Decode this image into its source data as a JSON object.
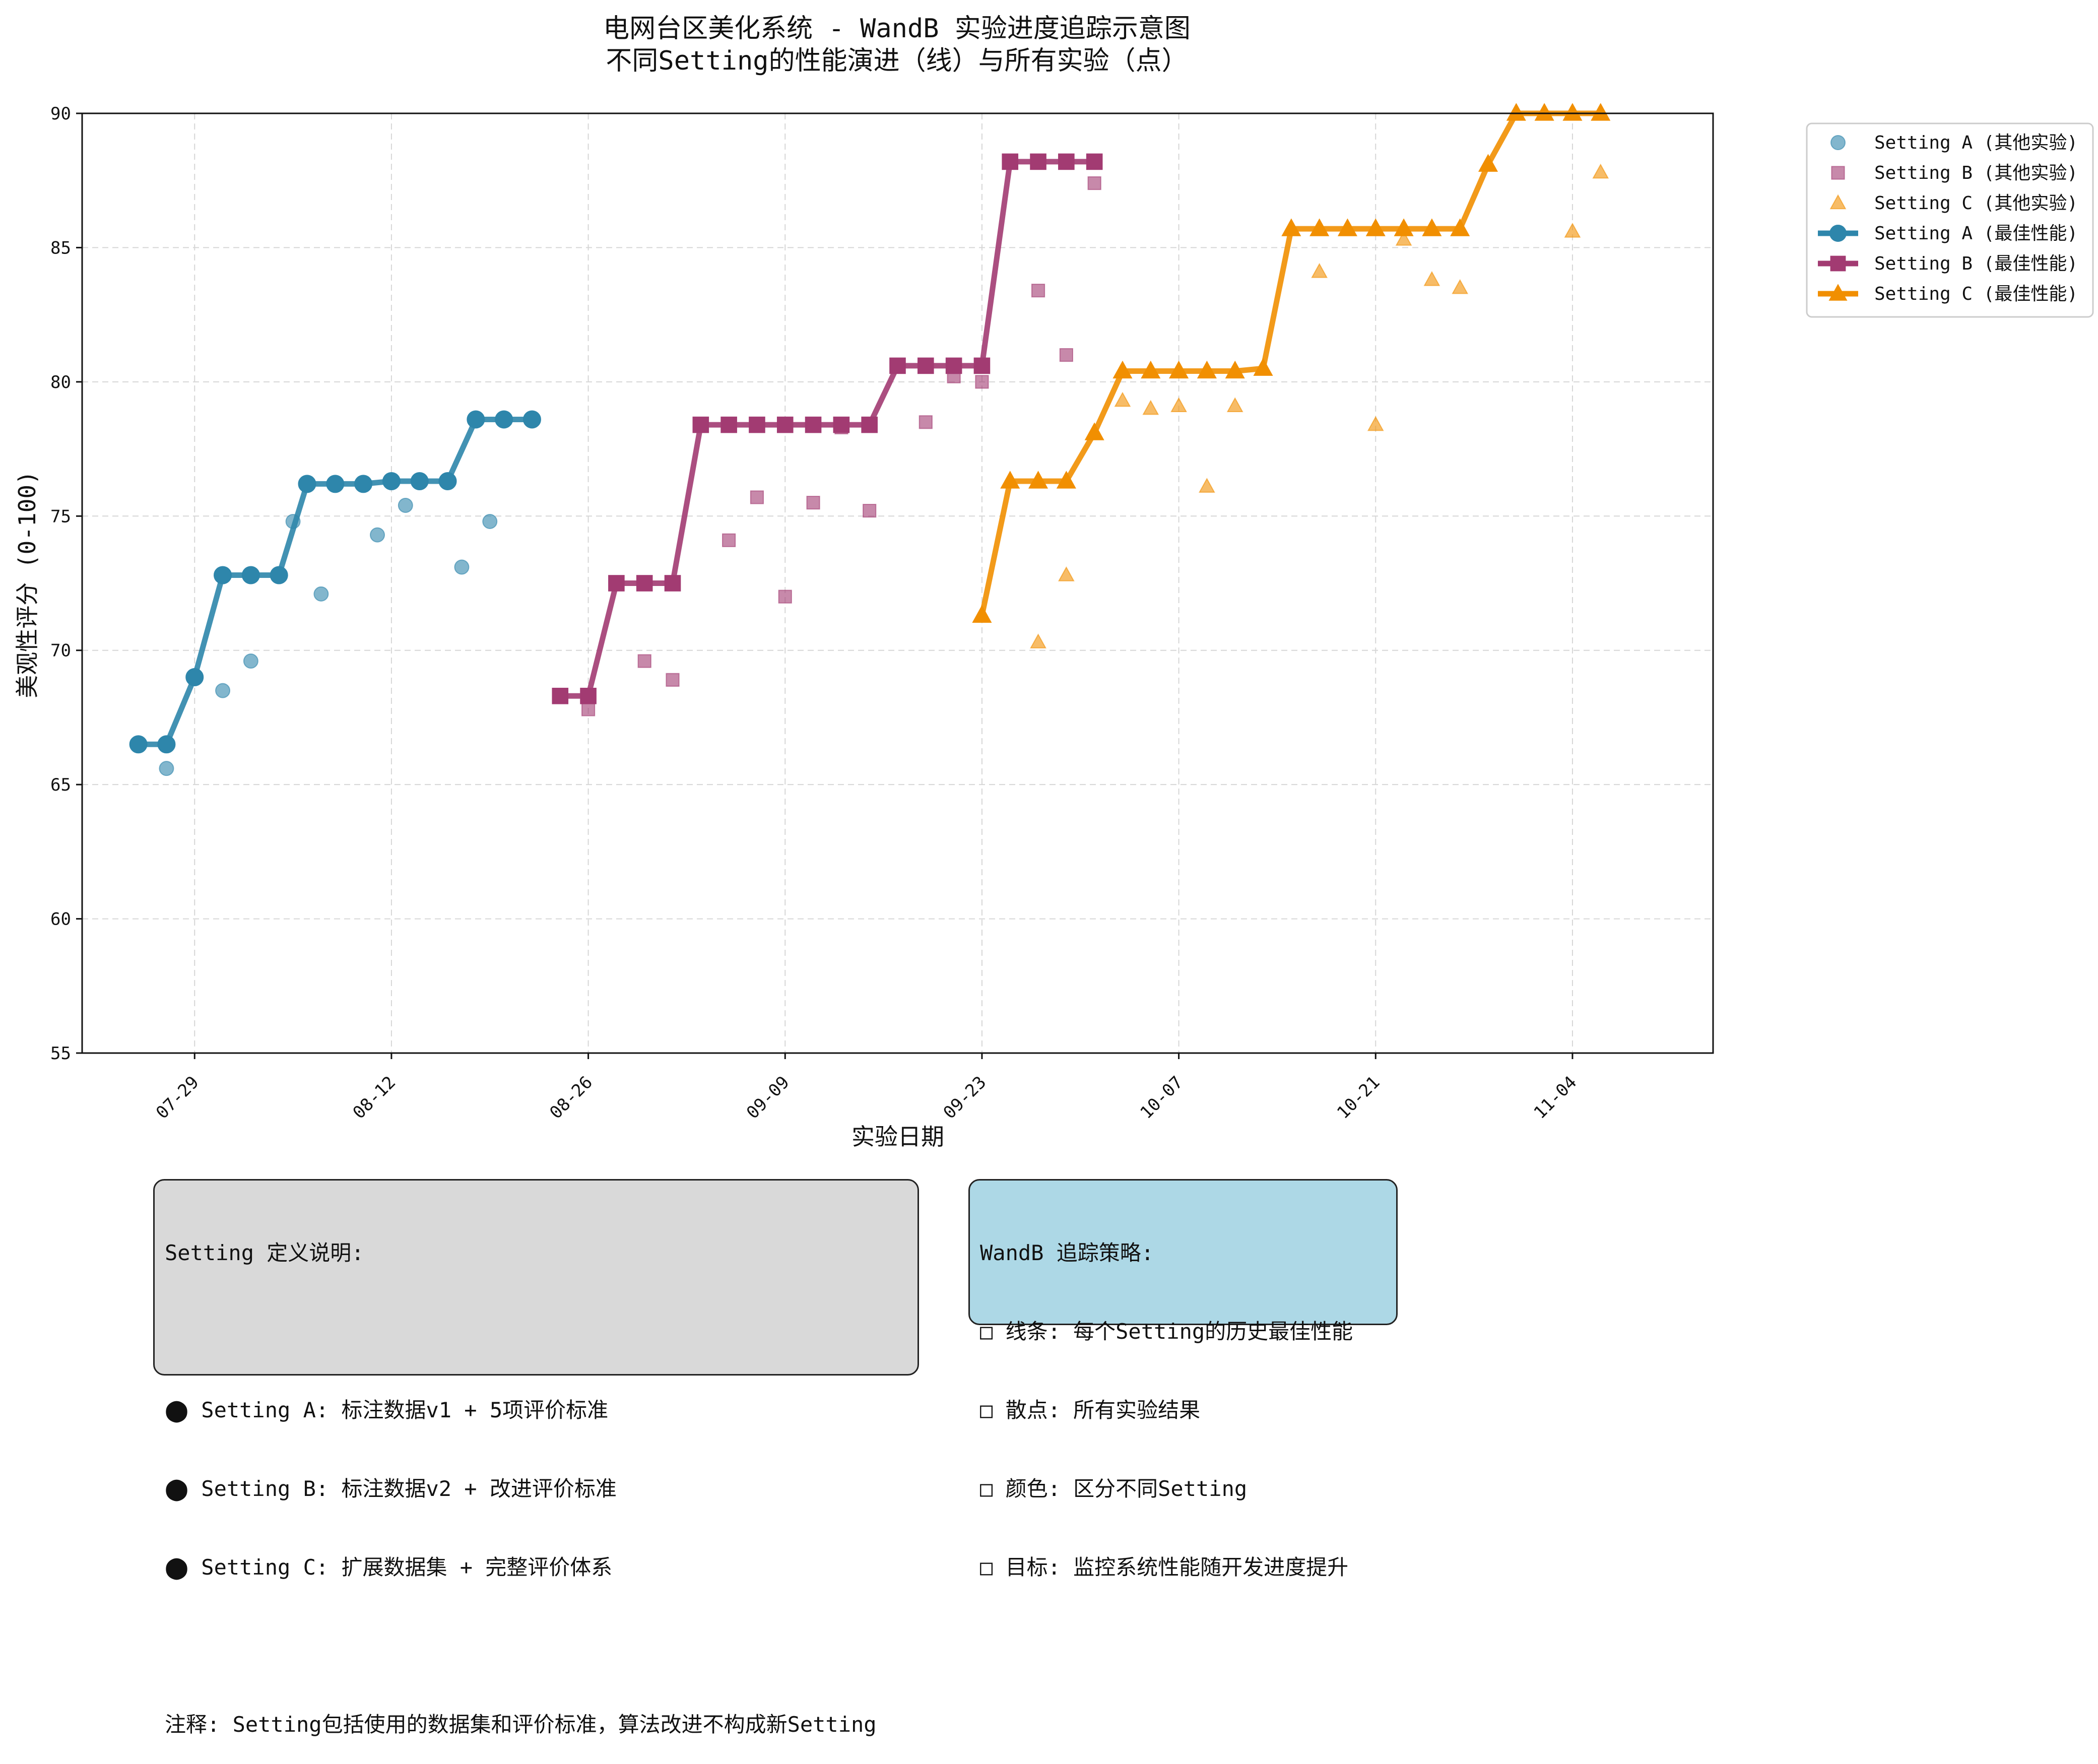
{
  "title": "电网台区美化系统 - WandB 实验进度追踪示意图",
  "subtitle": "不同Setting的性能演进（线）与所有实验（点）",
  "chart_data": {
    "type": "line",
    "xlabel": "实验日期",
    "ylabel": "美观性评分 (0-100)",
    "ylim": [
      55,
      90
    ],
    "xlim": [
      "2025-07-21",
      "2025-11-14"
    ],
    "x_ticks": [
      "07-29",
      "08-12",
      "08-26",
      "09-09",
      "09-23",
      "10-07",
      "10-21",
      "11-04"
    ],
    "y_ticks": [
      55,
      60,
      65,
      70,
      75,
      80,
      85,
      90
    ],
    "grid": true,
    "legend_position": "outside top-right",
    "series": [
      {
        "name": "Setting A (其他实验)",
        "kind": "scatter",
        "marker": "circle",
        "color": "#2e86ab",
        "points": [
          [
            "2025-07-27",
            65.6
          ],
          [
            "2025-07-31",
            68.5
          ],
          [
            "2025-08-02",
            69.6
          ],
          [
            "2025-08-05",
            74.8
          ],
          [
            "2025-08-07",
            72.1
          ],
          [
            "2025-08-11",
            74.3
          ],
          [
            "2025-08-13",
            75.4
          ],
          [
            "2025-08-17",
            73.1
          ],
          [
            "2025-08-19",
            74.8
          ]
        ]
      },
      {
        "name": "Setting B (其他实验)",
        "kind": "scatter",
        "marker": "square",
        "color": "#a23b72",
        "points": [
          [
            "2025-08-26",
            67.8
          ],
          [
            "2025-08-30",
            69.6
          ],
          [
            "2025-09-01",
            68.9
          ],
          [
            "2025-09-05",
            74.1
          ],
          [
            "2025-09-07",
            75.7
          ],
          [
            "2025-09-09",
            72.0
          ],
          [
            "2025-09-11",
            75.5
          ],
          [
            "2025-09-13",
            78.3
          ],
          [
            "2025-09-15",
            75.2
          ],
          [
            "2025-09-19",
            78.5
          ],
          [
            "2025-09-21",
            80.2
          ],
          [
            "2025-09-23",
            80.0
          ],
          [
            "2025-09-27",
            83.4
          ],
          [
            "2025-09-29",
            81.0
          ],
          [
            "2025-10-01",
            87.4
          ]
        ]
      },
      {
        "name": "Setting C (其他实验)",
        "kind": "scatter",
        "marker": "triangle",
        "color": "#f18f01",
        "points": [
          [
            "2025-09-27",
            70.3
          ],
          [
            "2025-09-29",
            72.8
          ],
          [
            "2025-10-03",
            79.3
          ],
          [
            "2025-10-05",
            79.0
          ],
          [
            "2025-10-07",
            79.1
          ],
          [
            "2025-10-09",
            76.1
          ],
          [
            "2025-10-11",
            79.1
          ],
          [
            "2025-10-17",
            84.1
          ],
          [
            "2025-10-21",
            78.4
          ],
          [
            "2025-10-23",
            85.3
          ],
          [
            "2025-10-25",
            83.8
          ],
          [
            "2025-10-27",
            83.5
          ],
          [
            "2025-11-04",
            85.6
          ],
          [
            "2025-11-06",
            87.8
          ]
        ]
      },
      {
        "name": "Setting A (最佳性能)",
        "kind": "line",
        "marker": "circle",
        "color": "#2e86ab",
        "points": [
          [
            "2025-07-25",
            66.5
          ],
          [
            "2025-07-27",
            66.5
          ],
          [
            "2025-07-29",
            69.0
          ],
          [
            "2025-07-31",
            72.8
          ],
          [
            "2025-08-02",
            72.8
          ],
          [
            "2025-08-04",
            72.8
          ],
          [
            "2025-08-06",
            76.2
          ],
          [
            "2025-08-08",
            76.2
          ],
          [
            "2025-08-10",
            76.2
          ],
          [
            "2025-08-12",
            76.3
          ],
          [
            "2025-08-14",
            76.3
          ],
          [
            "2025-08-16",
            76.3
          ],
          [
            "2025-08-18",
            78.6
          ],
          [
            "2025-08-20",
            78.6
          ],
          [
            "2025-08-22",
            78.6
          ]
        ]
      },
      {
        "name": "Setting B (最佳性能)",
        "kind": "line",
        "marker": "square",
        "color": "#a23b72",
        "points": [
          [
            "2025-08-24",
            68.3
          ],
          [
            "2025-08-26",
            68.3
          ],
          [
            "2025-08-28",
            72.5
          ],
          [
            "2025-08-30",
            72.5
          ],
          [
            "2025-09-01",
            72.5
          ],
          [
            "2025-09-03",
            78.4
          ],
          [
            "2025-09-05",
            78.4
          ],
          [
            "2025-09-07",
            78.4
          ],
          [
            "2025-09-09",
            78.4
          ],
          [
            "2025-09-11",
            78.4
          ],
          [
            "2025-09-13",
            78.4
          ],
          [
            "2025-09-15",
            78.4
          ],
          [
            "2025-09-17",
            80.6
          ],
          [
            "2025-09-19",
            80.6
          ],
          [
            "2025-09-21",
            80.6
          ],
          [
            "2025-09-23",
            80.6
          ],
          [
            "2025-09-25",
            88.2
          ],
          [
            "2025-09-27",
            88.2
          ],
          [
            "2025-09-29",
            88.2
          ],
          [
            "2025-10-01",
            88.2
          ]
        ]
      },
      {
        "name": "Setting C (最佳性能)",
        "kind": "line",
        "marker": "triangle",
        "color": "#f18f01",
        "points": [
          [
            "2025-09-23",
            71.3
          ],
          [
            "2025-09-25",
            76.3
          ],
          [
            "2025-09-27",
            76.3
          ],
          [
            "2025-09-29",
            76.3
          ],
          [
            "2025-10-01",
            78.1
          ],
          [
            "2025-10-03",
            80.4
          ],
          [
            "2025-10-05",
            80.4
          ],
          [
            "2025-10-07",
            80.4
          ],
          [
            "2025-10-09",
            80.4
          ],
          [
            "2025-10-11",
            80.4
          ],
          [
            "2025-10-13",
            80.5
          ],
          [
            "2025-10-15",
            85.7
          ],
          [
            "2025-10-17",
            85.7
          ],
          [
            "2025-10-19",
            85.7
          ],
          [
            "2025-10-21",
            85.7
          ],
          [
            "2025-10-23",
            85.7
          ],
          [
            "2025-10-25",
            85.7
          ],
          [
            "2025-10-27",
            85.7
          ],
          [
            "2025-10-29",
            88.1
          ],
          [
            "2025-10-31",
            90.0
          ],
          [
            "2025-11-02",
            90.0
          ],
          [
            "2025-11-04",
            90.0
          ],
          [
            "2025-11-06",
            90.0
          ]
        ]
      }
    ]
  },
  "setting_box": {
    "title": "Setting 定义说明:",
    "items": [
      "⬤ Setting A: 标注数据v1 + 5项评价标准",
      "⬤ Setting B: 标注数据v2 + 改进评价标准",
      "⬤ Setting C: 扩展数据集 + 完整评价体系"
    ],
    "note": "注释: Setting包括使用的数据集和评价标准，算法改进不构成新Setting",
    "bg_color": "#d9d9d9"
  },
  "wandb_box": {
    "title": "WandB 追踪策略:",
    "items": [
      "□ 线条: 每个Setting的历史最佳性能",
      "□ 散点: 所有实验结果",
      "□ 颜色: 区分不同Setting",
      "□ 目标: 监控系统性能随开发进度提升"
    ],
    "bg_color": "#add8e6"
  }
}
